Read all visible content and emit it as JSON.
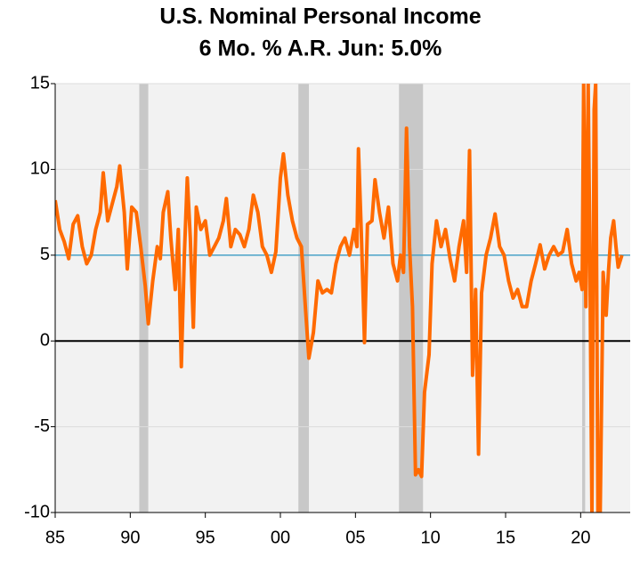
{
  "chart_data": {
    "type": "line",
    "title": "U.S. Nominal Personal Income",
    "subtitle": "6 Mo. % A.R.   Jun: 5.0%",
    "color": "#ff6a00",
    "reference_line": 5.0,
    "reference_color": "#4aa3c8",
    "zero_line": true,
    "recession_color": "#c8c8c8",
    "recessions": [
      [
        1990.6,
        1991.2
      ],
      [
        2001.2,
        2001.9
      ],
      [
        2007.9,
        2009.5
      ],
      [
        2020.1,
        2020.3
      ]
    ],
    "xlim": [
      1985,
      2023.3
    ],
    "xticks": [
      {
        "value": 1985,
        "label": "85"
      },
      {
        "value": 1990,
        "label": "90"
      },
      {
        "value": 1995,
        "label": "95"
      },
      {
        "value": 2000,
        "label": "00"
      },
      {
        "value": 2005,
        "label": "05"
      },
      {
        "value": 2010,
        "label": "10"
      },
      {
        "value": 2015,
        "label": "15"
      },
      {
        "value": 2020,
        "label": "20"
      }
    ],
    "ylim": [
      -10,
      15
    ],
    "yticks": [
      15,
      10,
      5,
      0,
      -5,
      -10
    ],
    "grid": true,
    "x": [
      1985.0,
      1985.3,
      1985.6,
      1985.9,
      1986.2,
      1986.5,
      1986.8,
      1987.1,
      1987.4,
      1987.7,
      1988.0,
      1988.2,
      1988.5,
      1988.8,
      1989.1,
      1989.3,
      1989.6,
      1989.8,
      1990.1,
      1990.4,
      1990.7,
      1991.0,
      1991.2,
      1991.5,
      1991.8,
      1992.0,
      1992.2,
      1992.5,
      1992.7,
      1993.0,
      1993.2,
      1993.4,
      1993.6,
      1993.8,
      1994.0,
      1994.2,
      1994.4,
      1994.7,
      1995.0,
      1995.3,
      1995.6,
      1995.9,
      1996.2,
      1996.4,
      1996.7,
      1997.0,
      1997.3,
      1997.6,
      1997.9,
      1998.2,
      1998.5,
      1998.8,
      1999.1,
      1999.4,
      1999.7,
      2000.0,
      2000.2,
      2000.5,
      2000.8,
      2001.1,
      2001.4,
      2001.7,
      2001.9,
      2002.2,
      2002.5,
      2002.8,
      2003.1,
      2003.4,
      2003.7,
      2004.0,
      2004.3,
      2004.6,
      2004.9,
      2005.1,
      2005.2,
      2005.4,
      2005.6,
      2005.8,
      2006.1,
      2006.3,
      2006.6,
      2006.9,
      2007.2,
      2007.5,
      2007.8,
      2008.0,
      2008.2,
      2008.4,
      2008.6,
      2008.8,
      2009.0,
      2009.2,
      2009.4,
      2009.6,
      2009.9,
      2010.1,
      2010.4,
      2010.7,
      2011.0,
      2011.3,
      2011.6,
      2011.9,
      2012.2,
      2012.4,
      2012.6,
      2012.8,
      2013.0,
      2013.2,
      2013.4,
      2013.7,
      2014.0,
      2014.3,
      2014.6,
      2014.9,
      2015.2,
      2015.5,
      2015.8,
      2016.1,
      2016.4,
      2016.7,
      2017.0,
      2017.3,
      2017.6,
      2017.9,
      2018.2,
      2018.5,
      2018.8,
      2019.1,
      2019.4,
      2019.7,
      2019.9,
      2020.1,
      2020.2,
      2020.35,
      2020.5,
      2020.6,
      2020.75,
      2020.9,
      2021.0,
      2021.15,
      2021.3,
      2021.5,
      2021.7,
      2021.85,
      2022.0,
      2022.2,
      2022.35,
      2022.5,
      2022.75
    ],
    "values": [
      8.2,
      6.5,
      5.8,
      4.8,
      6.8,
      7.3,
      5.5,
      4.5,
      5.0,
      6.5,
      7.5,
      9.8,
      7.0,
      8.0,
      9.0,
      10.2,
      7.5,
      4.2,
      7.8,
      7.5,
      5.5,
      3.2,
      1.0,
      3.5,
      5.5,
      4.8,
      7.5,
      8.7,
      6.0,
      3.0,
      6.5,
      -1.5,
      5.0,
      9.5,
      6.0,
      0.8,
      7.8,
      6.5,
      7.0,
      5.0,
      5.5,
      6.0,
      7.0,
      8.3,
      5.5,
      6.5,
      6.2,
      5.5,
      6.5,
      8.5,
      7.5,
      5.5,
      5.0,
      4.0,
      5.2,
      9.5,
      10.9,
      8.5,
      7.0,
      6.0,
      5.5,
      1.5,
      -1.0,
      0.5,
      3.5,
      2.8,
      3.0,
      2.8,
      4.5,
      5.5,
      6.0,
      5.0,
      6.5,
      5.5,
      11.2,
      6.0,
      -0.1,
      6.8,
      7.0,
      9.4,
      7.5,
      6.0,
      7.8,
      4.5,
      3.5,
      5.0,
      4.0,
      12.4,
      5.5,
      2.0,
      -7.8,
      -7.5,
      -7.9,
      -3.0,
      -0.8,
      4.5,
      7.0,
      5.5,
      6.5,
      4.8,
      3.5,
      5.5,
      7.0,
      4.0,
      11.1,
      -2.0,
      3.0,
      -6.6,
      2.8,
      5.0,
      6.0,
      7.4,
      5.5,
      5.0,
      3.5,
      2.5,
      3.0,
      2.0,
      2.0,
      3.5,
      4.5,
      5.6,
      4.2,
      5.0,
      5.5,
      5.0,
      5.2,
      6.5,
      4.5,
      3.5,
      4.0,
      3.0,
      15,
      2.0,
      15,
      6.0,
      -10,
      13.5,
      15,
      -10,
      -10,
      4.0,
      1.5,
      4.0,
      6.0,
      7.0,
      5.5,
      4.3,
      5.0
    ]
  }
}
